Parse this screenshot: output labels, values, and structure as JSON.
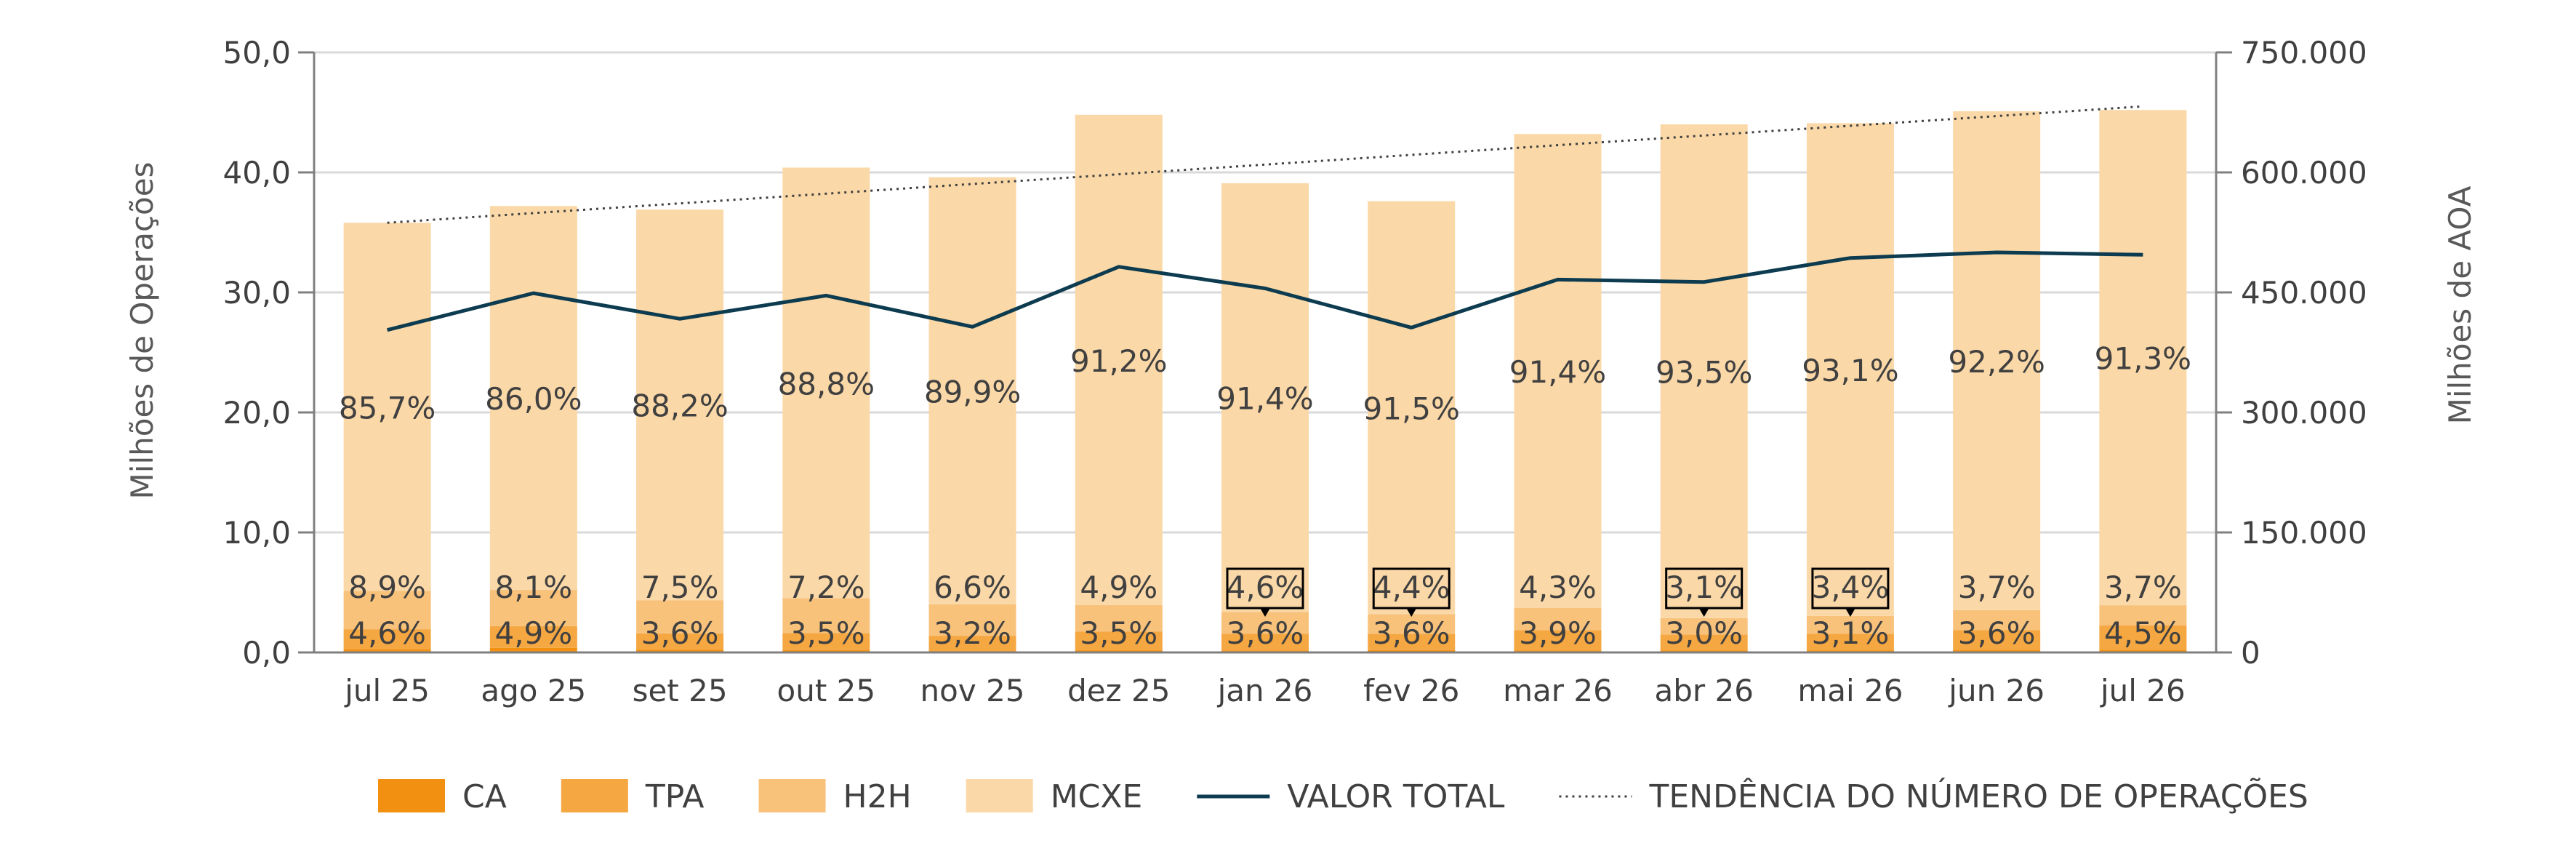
{
  "chart_data": {
    "type": "bar",
    "stacked": true,
    "categories": [
      "jul 25",
      "ago 25",
      "set 25",
      "out 25",
      "nov 25",
      "dez 25",
      "jan 26",
      "fev 26",
      "mar 26",
      "abr 26",
      "mai 26",
      "jun 26",
      "jul 26"
    ],
    "totals": [
      35.8,
      37.2,
      36.9,
      40.4,
      39.6,
      44.8,
      39.1,
      37.6,
      43.2,
      44.0,
      44.1,
      45.1,
      45.2
    ],
    "series": [
      {
        "name": "CA",
        "color": "#F29111",
        "shares": [
          0.8,
          1.0,
          0.7,
          0.5,
          0.3,
          0.4,
          0.4,
          0.5,
          0.4,
          0.4,
          0.4,
          0.5,
          0.5
        ]
      },
      {
        "name": "TPA",
        "color": "#F5A742",
        "shares": [
          4.6,
          4.9,
          3.6,
          3.5,
          3.2,
          3.5,
          3.6,
          3.6,
          3.9,
          3.0,
          3.1,
          3.6,
          4.5
        ],
        "labels": [
          "4,6%",
          "4,9%",
          "3,6%",
          "3,5%",
          "3,2%",
          "3,5%",
          "3,6%",
          "3,6%",
          "3,9%",
          "3,0%",
          "3,1%",
          "3,6%",
          "4,5%"
        ]
      },
      {
        "name": "H2H",
        "color": "#F8C27B",
        "shares": [
          8.9,
          8.1,
          7.5,
          7.2,
          6.6,
          4.9,
          4.6,
          4.4,
          4.3,
          3.1,
          3.4,
          3.7,
          3.7
        ],
        "labels": [
          "8,9%",
          "8,1%",
          "7,5%",
          "7,2%",
          "6,6%",
          "4,9%",
          "4,6%",
          "4,4%",
          "4,3%",
          "3,1%",
          "3,4%",
          "3,7%",
          "3,7%"
        ]
      },
      {
        "name": "MCXE",
        "color": "#FBD8A7",
        "shares": [
          85.7,
          86.0,
          88.2,
          88.8,
          89.9,
          91.2,
          91.4,
          91.5,
          91.4,
          93.5,
          93.1,
          92.2,
          91.3
        ],
        "labels": [
          "85,7%",
          "86,0%",
          "88,2%",
          "88,8%",
          "89,9%",
          "91,2%",
          "91,4%",
          "91,5%",
          "91,4%",
          "93,5%",
          "93,1%",
          "92,2%",
          "91,3%"
        ]
      }
    ],
    "boxed_labels": {
      "h2h_indices": [
        6,
        7,
        9,
        10
      ]
    },
    "valor_total": {
      "name": "VALOR TOTAL",
      "color": "#0D3B4F",
      "values": [
        403000,
        449000,
        417000,
        446000,
        407000,
        482000,
        455000,
        406000,
        466000,
        463000,
        493000,
        500000,
        497000
      ]
    },
    "trend": {
      "name": "TENDÊNCIA DO NÚMERO DE OPERAÇÕES",
      "start": 35.8,
      "end": 45.5
    },
    "y_left": {
      "label": "Milhões de Operações",
      "min": 0,
      "max": 50,
      "ticks": [
        "0,0",
        "10,0",
        "20,0",
        "30,0",
        "40,0",
        "50,0"
      ]
    },
    "y_right": {
      "label": "Milhões de AOA",
      "min": 0,
      "max": 750000,
      "ticks": [
        "0",
        "150.000",
        "300.000",
        "450.000",
        "600.000",
        "750.000"
      ]
    },
    "grid": true,
    "legend_position": "bottom"
  },
  "legend": {
    "items": [
      {
        "label": "CA",
        "kind": "swatch",
        "color": "#F29111"
      },
      {
        "label": "TPA",
        "kind": "swatch",
        "color": "#F5A742"
      },
      {
        "label": "H2H",
        "kind": "swatch",
        "color": "#F8C27B"
      },
      {
        "label": "MCXE",
        "kind": "swatch",
        "color": "#FBD8A7"
      },
      {
        "label": "VALOR TOTAL",
        "kind": "line",
        "color": "#0D3B4F"
      },
      {
        "label": "TENDÊNCIA DO NÚMERO DE OPERAÇÕES",
        "kind": "dotted",
        "color": "#404040"
      }
    ]
  }
}
